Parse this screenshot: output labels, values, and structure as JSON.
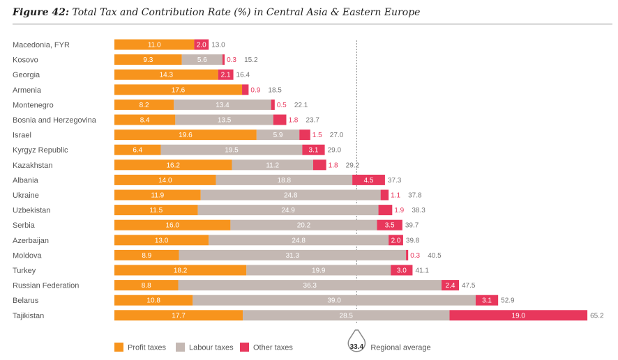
{
  "figure": {
    "number": "Figure 42:",
    "title": "Total Tax and Contribution Rate (%) in Central Asia & Eastern Europe"
  },
  "chart_data": {
    "type": "bar",
    "orientation": "horizontal",
    "stacked": true,
    "categories": [
      "Macedonia, FYR",
      "Kosovo",
      "Georgia",
      "Armenia",
      "Montenegro",
      "Bosnia and Herzegovina",
      "Israel",
      "Kyrgyz Republic",
      "Kazakhstan",
      "Albania",
      "Ukraine",
      "Uzbekistan",
      "Serbia",
      "Azerbaijan",
      "Moldova",
      "Turkey",
      "Russian Federation",
      "Belarus",
      "Tajikistan"
    ],
    "series": [
      {
        "name": "Profit taxes",
        "color": "#f7941d",
        "values": [
          11.0,
          9.3,
          14.3,
          17.6,
          8.2,
          8.4,
          19.6,
          6.4,
          16.2,
          14.0,
          11.9,
          11.5,
          16.0,
          13.0,
          8.9,
          18.2,
          8.8,
          10.8,
          17.7
        ]
      },
      {
        "name": "Labour taxes",
        "color": "#c4b8b3",
        "values": [
          null,
          5.6,
          null,
          null,
          13.4,
          13.5,
          5.9,
          19.5,
          11.2,
          18.8,
          24.8,
          24.9,
          20.2,
          24.8,
          31.3,
          19.9,
          36.3,
          39.0,
          28.5
        ]
      },
      {
        "name": "Other taxes",
        "color": "#e8375c",
        "values": [
          2.0,
          0.3,
          2.1,
          0.9,
          0.5,
          1.8,
          1.5,
          3.1,
          1.8,
          4.5,
          1.1,
          1.9,
          3.5,
          2.0,
          0.3,
          3.0,
          2.4,
          3.1,
          19.0
        ]
      }
    ],
    "totals": [
      13.0,
      15.2,
      16.4,
      18.5,
      22.1,
      23.7,
      27.0,
      29.0,
      29.2,
      37.3,
      37.8,
      38.3,
      39.7,
      39.8,
      40.5,
      41.1,
      47.5,
      52.9,
      65.2
    ],
    "regional_average": {
      "value": 33.4,
      "label": "Regional average"
    },
    "xlim": [
      0,
      65.2
    ],
    "legend": {
      "placement": "bottom"
    },
    "grid": false
  }
}
